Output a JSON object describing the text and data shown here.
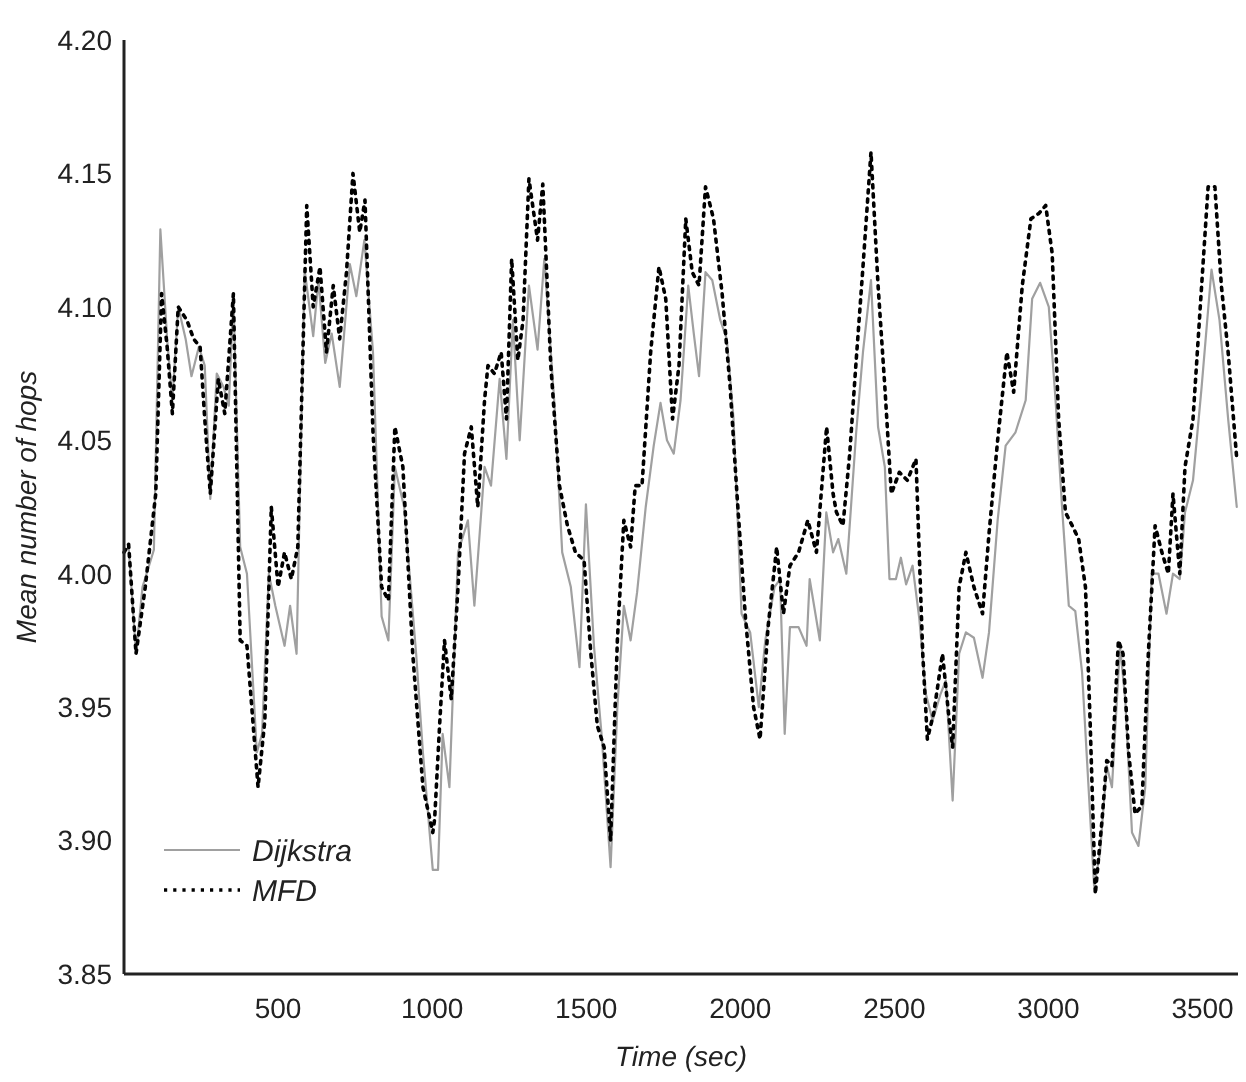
{
  "chart_data": {
    "type": "line",
    "xlabel": "Time (sec)",
    "ylabel": "Mean number of hops",
    "xlim": [
      0,
      3615
    ],
    "ylim": [
      3.85,
      4.2
    ],
    "xticks": [
      500,
      1000,
      1500,
      2000,
      2500,
      3000,
      3500
    ],
    "yticks": [
      {
        "value": 3.85,
        "label": "3.85"
      },
      {
        "value": 3.9,
        "label": "3.90"
      },
      {
        "value": 3.95,
        "label": "3.95"
      },
      {
        "value": 4.0,
        "label": "4.00"
      },
      {
        "value": 4.05,
        "label": "4.05"
      },
      {
        "value": 4.1,
        "label": "4.10"
      },
      {
        "value": 4.15,
        "label": "4.15"
      },
      {
        "value": 4.2,
        "label": "4.20"
      }
    ],
    "grid": false,
    "legend": "bottom left",
    "marker": "none",
    "series": [
      {
        "name": "Dijkstra",
        "color": "#a0a0a0",
        "line_style": "solid",
        "x": [
          0,
          15,
          39,
          60,
          97,
          118,
          140,
          157,
          176,
          200,
          219,
          243,
          262,
          280,
          301,
          323,
          340,
          355,
          377,
          399,
          431,
          448,
          470,
          491,
          521,
          539,
          560,
          586,
          614,
          631,
          653,
          674,
          700,
          733,
          754,
          780,
          808,
          836,
          858,
          879,
          909,
          948,
          970,
          1002,
          1019,
          1034,
          1056,
          1084,
          1116,
          1137,
          1170,
          1191,
          1219,
          1241,
          1262,
          1284,
          1314,
          1342,
          1364,
          1396,
          1422,
          1450,
          1478,
          1499,
          1525,
          1551,
          1579,
          1601,
          1622,
          1644,
          1665,
          1693,
          1719,
          1741,
          1762,
          1784,
          1806,
          1831,
          1849,
          1866,
          1887,
          1909,
          1935,
          1956,
          1978,
          2004,
          2032,
          2060,
          2081,
          2111,
          2129,
          2144,
          2161,
          2189,
          2215,
          2225,
          2258,
          2279,
          2301,
          2318,
          2344,
          2376,
          2398,
          2424,
          2447,
          2469,
          2484,
          2505,
          2521,
          2538,
          2559,
          2581,
          2602,
          2624,
          2650,
          2667,
          2689,
          2710,
          2732,
          2758,
          2786,
          2807,
          2835,
          2861,
          2893,
          2926,
          2947,
          2973,
          3001,
          3023,
          3044,
          3066,
          3087,
          3109,
          3130,
          3148,
          3167,
          3189,
          3206,
          3232,
          3249,
          3271,
          3292,
          3314,
          3335,
          3357,
          3383,
          3404,
          3426,
          3443,
          3469,
          3497,
          3529,
          3555,
          3583,
          3611
        ],
        "values": [
          4.008,
          4.01,
          3.97,
          3.995,
          4.009,
          4.129,
          4.088,
          4.065,
          4.1,
          4.088,
          4.074,
          4.085,
          4.078,
          4.028,
          4.075,
          4.07,
          4.063,
          4.104,
          4.01,
          4.0,
          3.933,
          3.94,
          4.0,
          3.988,
          3.973,
          3.988,
          3.97,
          4.114,
          4.089,
          4.11,
          4.079,
          4.09,
          4.07,
          4.116,
          4.104,
          4.125,
          4.083,
          3.984,
          3.975,
          4.04,
          4.025,
          3.97,
          3.933,
          3.889,
          3.889,
          3.94,
          3.92,
          4.008,
          4.02,
          3.988,
          4.04,
          4.033,
          4.073,
          4.043,
          4.095,
          4.05,
          4.108,
          4.084,
          4.118,
          4.065,
          4.008,
          3.995,
          3.965,
          4.026,
          3.973,
          3.938,
          3.89,
          3.95,
          3.988,
          3.975,
          3.993,
          4.025,
          4.048,
          4.064,
          4.05,
          4.045,
          4.065,
          4.108,
          4.09,
          4.074,
          4.113,
          4.11,
          4.095,
          4.088,
          4.058,
          3.985,
          3.978,
          3.95,
          3.975,
          3.995,
          3.998,
          3.94,
          3.98,
          3.98,
          3.973,
          3.998,
          3.975,
          4.023,
          4.008,
          4.013,
          4.0,
          4.053,
          4.083,
          4.11,
          4.055,
          4.04,
          3.998,
          3.998,
          4.006,
          3.996,
          4.003,
          3.983,
          3.955,
          3.945,
          3.955,
          3.96,
          3.915,
          3.97,
          3.978,
          3.976,
          3.961,
          3.978,
          4.02,
          4.048,
          4.053,
          4.065,
          4.103,
          4.109,
          4.1,
          4.065,
          4.025,
          3.988,
          3.986,
          3.963,
          3.92,
          3.883,
          3.895,
          3.928,
          3.92,
          3.973,
          3.953,
          3.903,
          3.898,
          3.92,
          4.0,
          4.0,
          3.985,
          4.0,
          3.998,
          4.023,
          4.035,
          4.07,
          4.114,
          4.095,
          4.058,
          4.025
        ]
      },
      {
        "name": "MFD",
        "color": "#000000",
        "line_style": "dotted",
        "x": [
          0,
          15,
          39,
          69,
          103,
          122,
          140,
          157,
          176,
          204,
          226,
          247,
          262,
          280,
          306,
          327,
          355,
          377,
          399,
          435,
          457,
          478,
          500,
          521,
          543,
          564,
          593,
          614,
          636,
          657,
          679,
          700,
          722,
          743,
          765,
          782,
          808,
          836,
          858,
          879,
          905,
          937,
          970,
          1002,
          1008,
          1025,
          1040,
          1062,
          1084,
          1105,
          1127,
          1148,
          1170,
          1181,
          1202,
          1224,
          1241,
          1258,
          1278,
          1295,
          1314,
          1342,
          1359,
          1385,
          1413,
          1439,
          1465,
          1493,
          1515,
          1536,
          1558,
          1579,
          1601,
          1622,
          1644,
          1659,
          1681,
          1709,
          1736,
          1758,
          1780,
          1801,
          1823,
          1844,
          1866,
          1887,
          1913,
          1941,
          1967,
          1989,
          2017,
          2043,
          2064,
          2090,
          2118,
          2140,
          2161,
          2189,
          2219,
          2247,
          2280,
          2301,
          2312,
          2333,
          2355,
          2376,
          2398,
          2424,
          2447,
          2469,
          2490,
          2516,
          2542,
          2570,
          2592,
          2607,
          2628,
          2656,
          2678,
          2689,
          2710,
          2732,
          2758,
          2786,
          2807,
          2835,
          2865,
          2887,
          2915,
          2943,
          2969,
          2991,
          3012,
          3033,
          3055,
          3077,
          3098,
          3120,
          3135,
          3152,
          3174,
          3189,
          3206,
          3227,
          3242,
          3260,
          3281,
          3303,
          3324,
          3346,
          3368,
          3389,
          3404,
          3426,
          3443,
          3469,
          3497,
          3518,
          3540,
          3561,
          3583,
          3611
        ],
        "values": [
          4.008,
          4.011,
          3.97,
          3.995,
          4.03,
          4.105,
          4.085,
          4.06,
          4.1,
          4.095,
          4.088,
          4.085,
          4.058,
          4.03,
          4.073,
          4.06,
          4.105,
          3.975,
          3.973,
          3.92,
          3.945,
          4.025,
          3.995,
          4.008,
          3.998,
          4.01,
          4.138,
          4.1,
          4.115,
          4.083,
          4.108,
          4.088,
          4.113,
          4.15,
          4.128,
          4.14,
          4.053,
          3.995,
          3.99,
          4.055,
          4.04,
          3.97,
          3.92,
          3.903,
          3.908,
          3.945,
          3.975,
          3.953,
          3.995,
          4.045,
          4.055,
          4.025,
          4.065,
          4.078,
          4.075,
          4.083,
          4.058,
          4.118,
          4.08,
          4.095,
          4.148,
          4.125,
          4.146,
          4.078,
          4.033,
          4.018,
          4.008,
          4.005,
          3.97,
          3.943,
          3.935,
          3.9,
          3.975,
          4.02,
          4.01,
          4.033,
          4.033,
          4.083,
          4.115,
          4.103,
          4.058,
          4.078,
          4.133,
          4.113,
          4.108,
          4.145,
          4.133,
          4.105,
          4.07,
          4.03,
          3.983,
          3.95,
          3.938,
          3.98,
          4.01,
          3.985,
          4.003,
          4.008,
          4.02,
          4.008,
          4.055,
          4.03,
          4.023,
          4.018,
          4.045,
          4.08,
          4.115,
          4.158,
          4.108,
          4.07,
          4.03,
          4.038,
          4.035,
          4.043,
          3.97,
          3.938,
          3.948,
          3.97,
          3.945,
          3.935,
          3.995,
          4.008,
          3.995,
          3.985,
          4.015,
          4.05,
          4.083,
          4.068,
          4.108,
          4.133,
          4.135,
          4.138,
          4.12,
          4.058,
          4.023,
          4.018,
          4.013,
          3.995,
          3.945,
          3.88,
          3.908,
          3.93,
          3.928,
          3.975,
          3.97,
          3.933,
          3.91,
          3.913,
          3.97,
          4.018,
          4.008,
          4.0,
          4.03,
          4.0,
          4.04,
          4.058,
          4.108,
          4.145,
          4.145,
          4.108,
          4.083,
          4.043
        ]
      }
    ]
  }
}
